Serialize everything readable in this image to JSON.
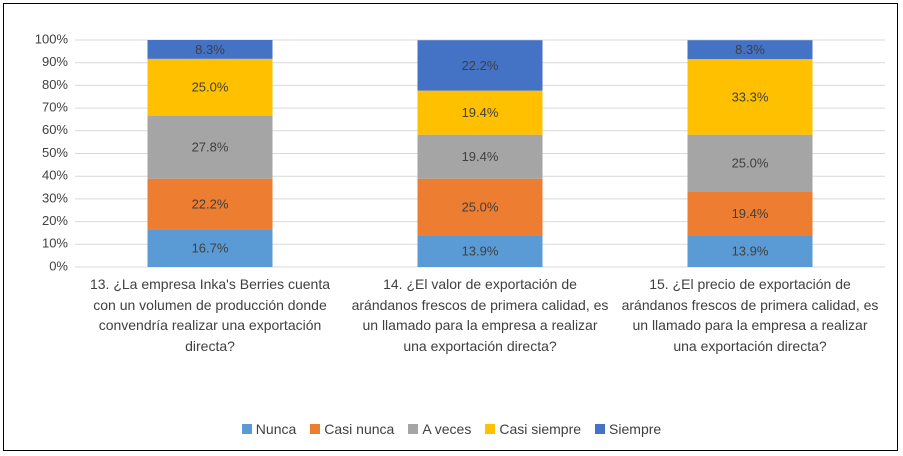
{
  "chart_data": {
    "type": "stacked_bar",
    "categories": [
      "13.  ¿La empresa Inka's Berries cuenta con un volumen de producción donde convendría realizar una exportación directa?",
      "14.  ¿El valor de exportación de arándanos frescos de primera calidad, es un llamado para la empresa a realizar una exportación directa?",
      "15.  ¿El precio de exportación de arándanos frescos de primera calidad, es un llamado para la empresa a realizar una exportación directa?"
    ],
    "series": [
      {
        "name": "Nunca",
        "color": "#5b9bd5",
        "values": [
          16.7,
          13.9,
          13.9
        ],
        "value_labels": [
          "16.7%",
          "13.9%",
          "13.9%"
        ]
      },
      {
        "name": "Casi nunca",
        "color": "#ed7d31",
        "values": [
          22.2,
          25.0,
          19.4
        ],
        "value_labels": [
          "22.2%",
          "25.0%",
          "19.4%"
        ]
      },
      {
        "name": "A veces",
        "color": "#a5a5a5",
        "values": [
          27.8,
          19.4,
          25.0
        ],
        "value_labels": [
          "27.8%",
          "19.4%",
          "25.0%"
        ]
      },
      {
        "name": "Casi siempre",
        "color": "#ffc000",
        "values": [
          25.0,
          19.4,
          33.3
        ],
        "value_labels": [
          "25.0%",
          "19.4%",
          "33.3%"
        ]
      },
      {
        "name": "Siempre",
        "color": "#4472c4",
        "values": [
          8.3,
          22.2,
          8.3
        ],
        "value_labels": [
          "8.3%",
          "22.2%",
          "8.3%"
        ]
      }
    ],
    "ylim": [
      0,
      100
    ],
    "yticks": [
      {
        "value": 0,
        "label": "0%"
      },
      {
        "value": 10,
        "label": "10%"
      },
      {
        "value": 20,
        "label": "20%"
      },
      {
        "value": 30,
        "label": "30%"
      },
      {
        "value": 40,
        "label": "40%"
      },
      {
        "value": 50,
        "label": "50%"
      },
      {
        "value": 60,
        "label": "60%"
      },
      {
        "value": 70,
        "label": "70%"
      },
      {
        "value": 80,
        "label": "80%"
      },
      {
        "value": 90,
        "label": "90%"
      },
      {
        "value": 100,
        "label": "100%"
      }
    ],
    "grid": true,
    "legend": "bottom"
  }
}
